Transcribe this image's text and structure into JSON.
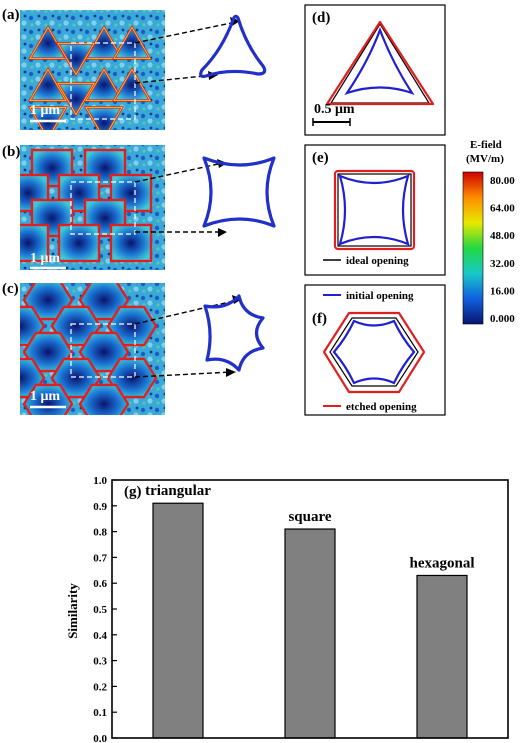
{
  "panels": {
    "a": "(a)",
    "b": "(b)",
    "c": "(c)",
    "d": "(d)",
    "e": "(e)",
    "f": "(f)",
    "g": "(g)"
  },
  "scale_bars": {
    "map": "1 μm",
    "outline": "0.5 μm"
  },
  "colorbar": {
    "title_line1": "E-field",
    "title_line2": "(MV/m)",
    "ticks": [
      "80.00",
      "64.00",
      "48.00",
      "32.00",
      "16.00",
      "0.000"
    ],
    "colors": [
      "#cc0000",
      "#ff8c00",
      "#e8e800",
      "#22d840",
      "#18c8c8",
      "#1060e0",
      "#0a1470"
    ]
  },
  "legend": {
    "ideal": "ideal opening",
    "initial": "initial opening",
    "etched": "etched opening"
  },
  "series_colors": {
    "ideal": "#000000",
    "initial": "#2020d0",
    "etched": "#e02020"
  },
  "chart_data": {
    "type": "bar",
    "categories": [
      "triangular",
      "square",
      "hexagonal"
    ],
    "values": [
      0.91,
      0.81,
      0.63
    ],
    "title": "",
    "xlabel": "",
    "ylabel": "Similarity",
    "ylim": [
      0.0,
      1.0
    ],
    "yticks": [
      "0.0",
      "0.1",
      "0.2",
      "0.3",
      "0.4",
      "0.5",
      "0.6",
      "0.7",
      "0.8",
      "0.9",
      "1.0"
    ],
    "bar_color": "#808080",
    "grid": false
  }
}
